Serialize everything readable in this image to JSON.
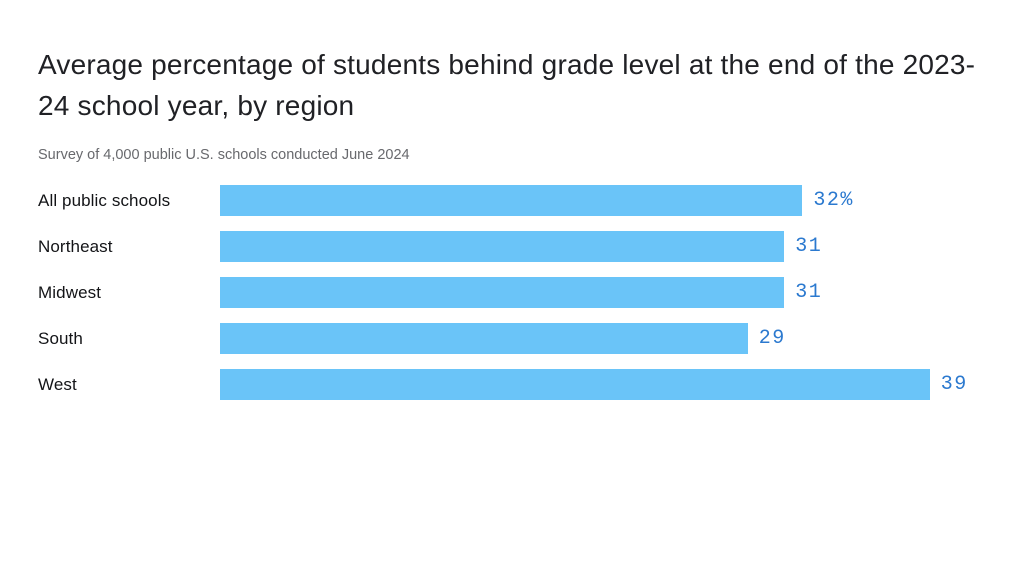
{
  "chart_data": {
    "type": "bar",
    "orientation": "horizontal",
    "title": "Average percentage of students behind grade level at the end of the 2023-24 school year, by region",
    "subtitle": "Survey of 4,000 public U.S. schools conducted June 2024",
    "categories": [
      "All public schools",
      "Northeast",
      "Midwest",
      "South",
      "West"
    ],
    "values": [
      32,
      31,
      31,
      29,
      39
    ],
    "value_labels": [
      "32%",
      "31",
      "31",
      "29",
      "39"
    ],
    "xlim": [
      0,
      39
    ],
    "grid": false,
    "legend": false,
    "colors": {
      "bar": "#6ac4f8",
      "value_label": "#2b79cf",
      "category_label": "#131417",
      "title": "#202125",
      "subtitle": "#68696d",
      "background": "#ffffff"
    }
  }
}
